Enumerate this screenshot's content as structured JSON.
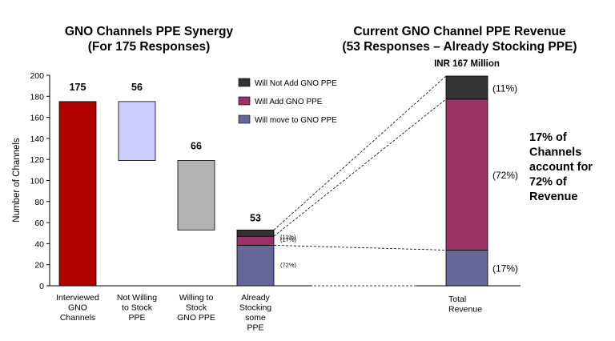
{
  "colors": {
    "dark_red": "#b00000",
    "lavender": "#ccccff",
    "gray": "#b2b2b2",
    "will_not_add": "#333333",
    "will_add": "#993366",
    "will_move": "#666699",
    "text": "#000000"
  },
  "chart_data": [
    {
      "type": "bar",
      "subtype": "waterfall",
      "title": "GNO Channels PPE Synergy",
      "subtitle": "(For 175 Responses)",
      "ylabel": "Number of Channels",
      "ylim": [
        0,
        200
      ],
      "yticks": [
        0,
        20,
        40,
        60,
        80,
        100,
        120,
        140,
        160,
        180,
        200
      ],
      "categories": [
        "Interviewed GNO Channels",
        "Not Willing to Stock PPE",
        "Willing to Stock GNO PPE",
        "Already Stocking some PPE"
      ],
      "category_lines": [
        [
          "Interviewed",
          "GNO",
          "Channels"
        ],
        [
          "Not Willing",
          "to Stock",
          "PPE"
        ],
        [
          "Willing to",
          "Stock",
          "GNO PPE"
        ],
        [
          "Already",
          "Stocking",
          "some",
          "PPE"
        ]
      ],
      "bars": [
        {
          "category": "Interviewed GNO Channels",
          "bottom": 0,
          "top": 175,
          "label": "175",
          "color_key": "dark_red"
        },
        {
          "category": "Not Willing to Stock PPE",
          "bottom": 119,
          "top": 175,
          "label": "56",
          "color_key": "lavender"
        },
        {
          "category": "Willing to Stock GNO PPE",
          "bottom": 53,
          "top": 119,
          "label": "66",
          "color_key": "gray"
        }
      ],
      "stacked_bar": {
        "category": "Already Stocking some PPE",
        "total_label": "53",
        "segments": [
          {
            "name": "Will move to GNO PPE",
            "value": 38.5,
            "pct": "(72%)",
            "color_key": "will_move"
          },
          {
            "name": "Will Add GNO PPE",
            "value": 8.5,
            "pct": "(17%)",
            "color_key": "will_add"
          },
          {
            "name": "Will Not Add GNO PPE",
            "value": 6.0,
            "pct": "(11%)",
            "color_key": "will_not_add"
          }
        ]
      },
      "legend": {
        "placement": "top-right",
        "entries": [
          {
            "name": "Will Not Add GNO PPE",
            "color_key": "will_not_add"
          },
          {
            "name": "Will Add GNO PPE",
            "color_key": "will_add"
          },
          {
            "name": "Will move to GNO PPE",
            "color_key": "will_move"
          }
        ]
      }
    },
    {
      "type": "bar",
      "subtype": "stacked",
      "title": "Current GNO Channel PPE Revenue",
      "subtitle": "(53 Responses – Already Stocking PPE)",
      "total_label": "INR 167 Million",
      "categories": [
        "Total Revenue"
      ],
      "category_lines": [
        [
          "Total",
          "Revenue"
        ]
      ],
      "segments": [
        {
          "name": "Will move to GNO PPE",
          "value": 17,
          "pct": "(17%)",
          "color_key": "will_move"
        },
        {
          "name": "Will Add GNO PPE",
          "value": 72,
          "pct": "(72%)",
          "color_key": "will_add"
        },
        {
          "name": "Will Not Add GNO PPE",
          "value": 11,
          "pct": "(11%)",
          "color_key": "will_not_add"
        }
      ],
      "annotation_lines": [
        "17% of",
        "Channels",
        "account for",
        "72% of",
        "Revenue"
      ]
    }
  ]
}
